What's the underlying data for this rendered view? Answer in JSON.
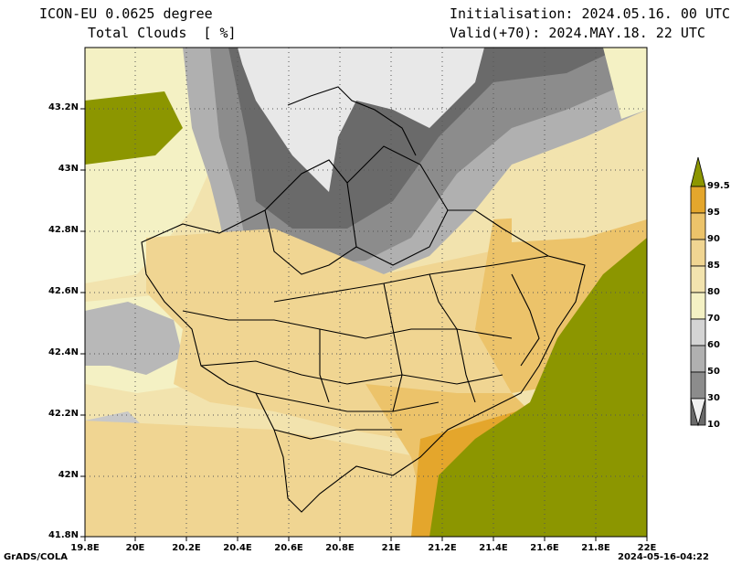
{
  "header": {
    "model": "ICON-EU 0.0625 degree",
    "field": "Total Clouds  [ %]",
    "init": "Initialisation: 2024.05.16. 00 UTC",
    "valid": "Valid(+70): 2024.MAY.18. 22 UTC"
  },
  "footer": {
    "software": "GrADS/COLA",
    "generated": "2024-05-16-04:22"
  },
  "map": {
    "y_ticks": [
      "43.2N",
      "43N",
      "42.8N",
      "42.6N",
      "42.4N",
      "42.2N",
      "42N",
      "41.8N"
    ],
    "x_ticks": [
      "19.8E",
      "20E",
      "20.2E",
      "20.4E",
      "20.6E",
      "20.8E",
      "21E",
      "21.2E",
      "21.4E",
      "21.6E",
      "21.8E",
      "22E"
    ]
  },
  "colorbar": {
    "labels": [
      "99.5",
      "95",
      "90",
      "85",
      "80",
      "70",
      "60",
      "50",
      "30",
      "10"
    ],
    "colors": [
      "#8c9600",
      "#e4a62c",
      "#ecc36a",
      "#f0d592",
      "#f2e3ae",
      "#f4f1c4",
      "#d4d4d4",
      "#b0b0b0",
      "#8c8c8c",
      "#6a6a6a",
      "#4c4c4c",
      "#f0f0f0"
    ]
  }
}
